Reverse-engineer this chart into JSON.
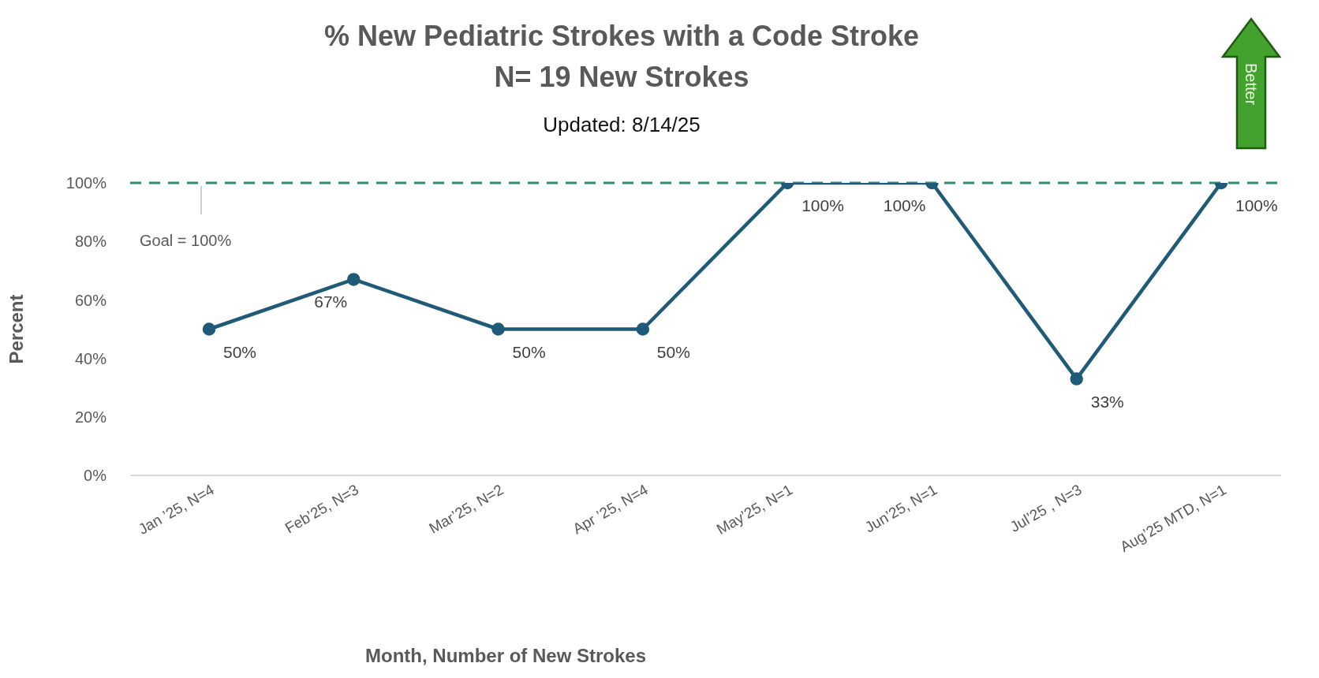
{
  "chart_data": {
    "type": "line",
    "title": "% New Pediatric Strokes with a Code Stroke",
    "subtitle": "N= 19 New Strokes",
    "xlabel": "Month, Number of New Strokes",
    "ylabel": "Percent",
    "categories": [
      "Jan ’25, N=4",
      "Feb’25, N=3",
      "Mar’25, N=2",
      "Apr ’25, N=4",
      "May’25, N=1",
      "Jun’25, N=1",
      "Jul’25 , N=3",
      "Aug’25 MTD, N=1"
    ],
    "series": [
      {
        "color": "#1f5b78",
        "values": [
          50,
          67,
          50,
          50,
          100,
          100,
          33,
          100
        ],
        "value_labels": [
          "50%",
          "67%",
          "50%",
          "50%",
          "100%",
          "100%",
          "33%",
          "100%"
        ]
      }
    ],
    "ylim": [
      0,
      100
    ],
    "yticks": [
      {
        "value": 0,
        "label": "0%"
      },
      {
        "value": 20,
        "label": "20%"
      },
      {
        "value": 40,
        "label": "40%"
      },
      {
        "value": 60,
        "label": "60%"
      },
      {
        "value": 80,
        "label": "80%"
      },
      {
        "value": 100,
        "label": "100%"
      }
    ],
    "ref_lines": [
      {
        "axis": "y",
        "value": 100,
        "label": "Goal = 100%",
        "color": "#2a9074",
        "line_style": "dashed"
      }
    ],
    "annotations": [
      "Updated:  8/14/25",
      "Better"
    ],
    "grid": false,
    "legend": false,
    "marker": "circle",
    "line_style": "solid"
  }
}
